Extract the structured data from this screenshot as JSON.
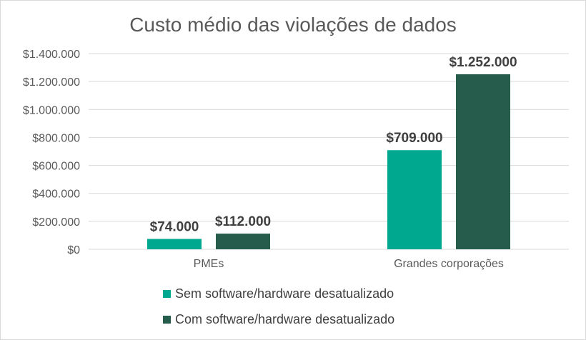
{
  "chart_data": {
    "type": "bar",
    "title": "Custo médio das violações de dados",
    "categories": [
      "PMEs",
      "Grandes corporações"
    ],
    "series": [
      {
        "name": "Sem software/hardware desatualizado",
        "values": [
          74000,
          709000
        ],
        "labels": [
          "$74.000",
          "$709.000"
        ],
        "color": "#00a88f"
      },
      {
        "name": "Com software/hardware desatualizado",
        "values": [
          112000,
          1252000
        ],
        "labels": [
          "$112.000",
          "$1.252.000"
        ],
        "color": "#265c4b"
      }
    ],
    "ylim": [
      0,
      1400000
    ],
    "yticks": [
      0,
      200000,
      400000,
      600000,
      800000,
      1000000,
      1200000,
      1400000
    ],
    "ytick_labels": [
      "$0",
      "$200.000",
      "$400.000",
      "$600.000",
      "$800.000",
      "$1.000.000",
      "$1.200.000",
      "$1.400.000"
    ],
    "grid": true,
    "legend_position": "bottom",
    "xlabel": "",
    "ylabel": ""
  }
}
